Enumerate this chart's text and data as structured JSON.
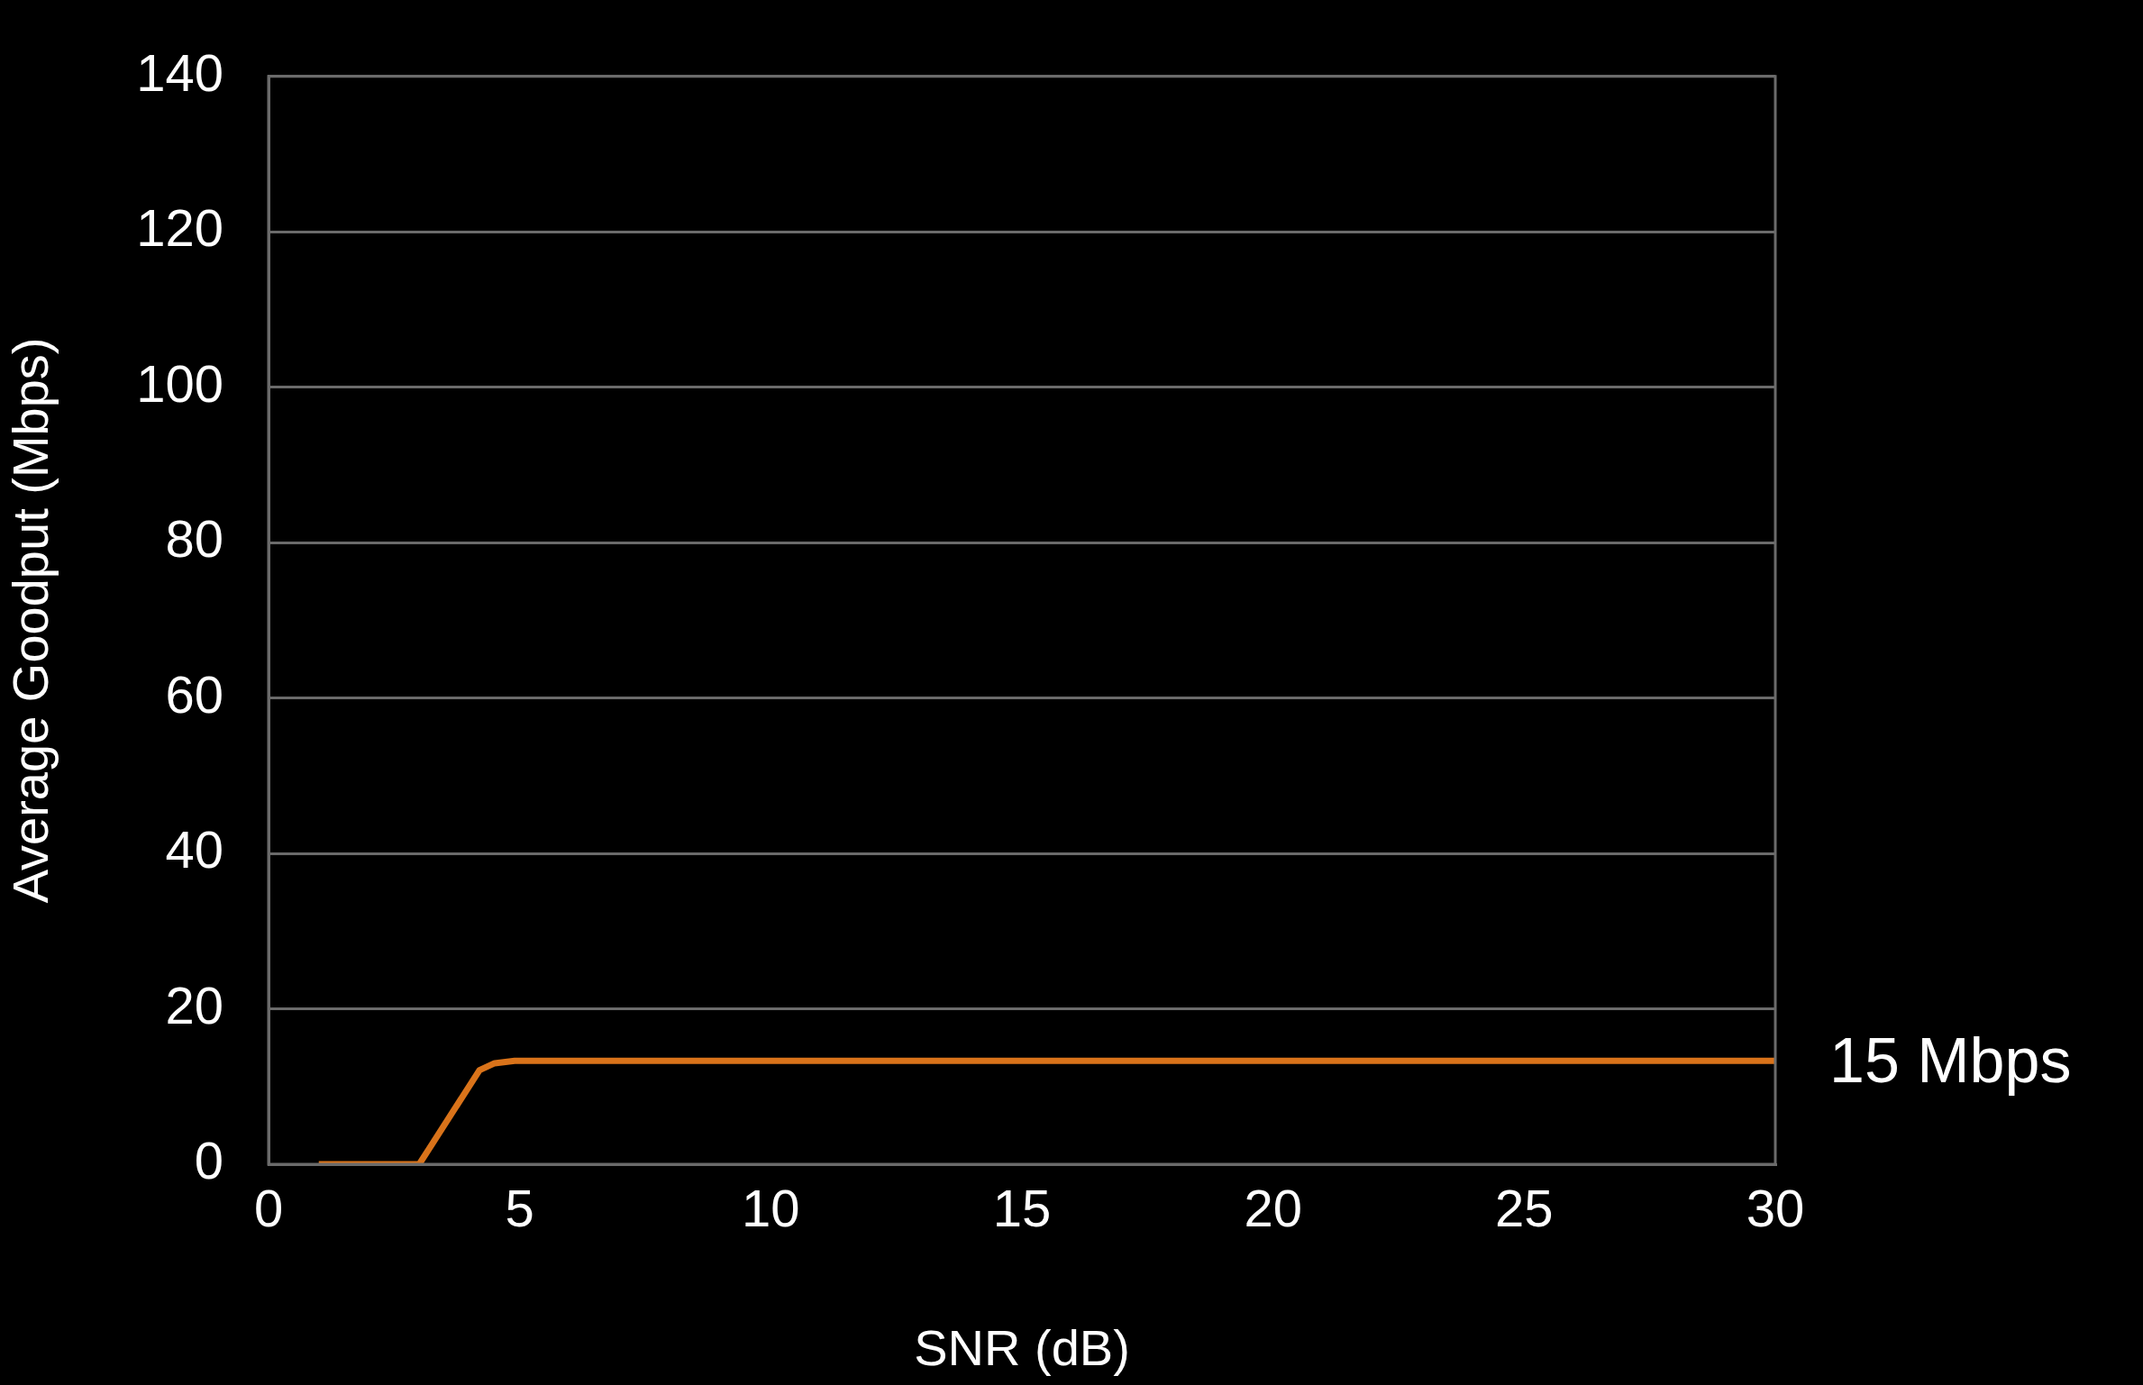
{
  "chart_data": {
    "type": "line",
    "xlabel": "SNR (dB)",
    "ylabel": "Average Goodput (Mbps)",
    "x": [
      1,
      2,
      3,
      4.2,
      4.5,
      4.9,
      6,
      10,
      15,
      20,
      25,
      30
    ],
    "series": [
      {
        "color": "#d9731a",
        "values": [
          0,
          0,
          0,
          12.1,
          13.0,
          13.3,
          13.3,
          13.3,
          13.3,
          13.3,
          13.3,
          13.3
        ]
      }
    ],
    "xlim": [
      0,
      30
    ],
    "xticks": [
      0,
      5,
      10,
      15,
      20,
      25,
      30
    ],
    "ylim": [
      0,
      140
    ],
    "yticks": [
      0,
      20,
      40,
      60,
      80,
      100,
      120,
      140
    ],
    "grid": "y",
    "legend": false,
    "marker": "none",
    "line_style": "solid",
    "annotations": [
      {
        "text": "15 Mbps",
        "x": 30,
        "y": 13.3
      }
    ]
  }
}
